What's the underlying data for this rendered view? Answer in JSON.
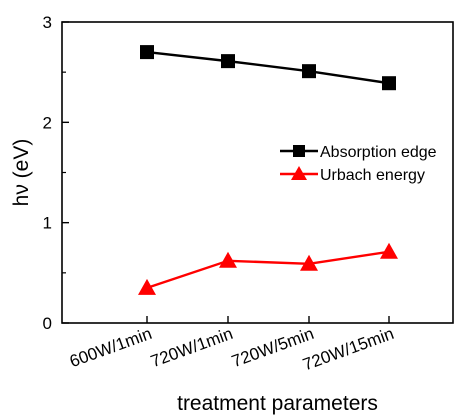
{
  "chart_data": {
    "type": "line",
    "categories": [
      "600W/1min",
      "720W/1min",
      "720W/5min",
      "720W/15min"
    ],
    "series": [
      {
        "name": "Absorption edge",
        "values": [
          2.7,
          2.61,
          2.51,
          2.39
        ],
        "color": "#000000",
        "marker": "square"
      },
      {
        "name": "Urbach energy",
        "values": [
          0.35,
          0.62,
          0.59,
          0.71
        ],
        "color": "#ff0000",
        "marker": "triangle"
      }
    ],
    "xlabel": "treatment parameters",
    "ylabel": "hν (eV)",
    "ylim": [
      0,
      3
    ],
    "yticks": [
      "0",
      "1",
      "2",
      "3"
    ],
    "grid": false,
    "legend_position": "right"
  }
}
